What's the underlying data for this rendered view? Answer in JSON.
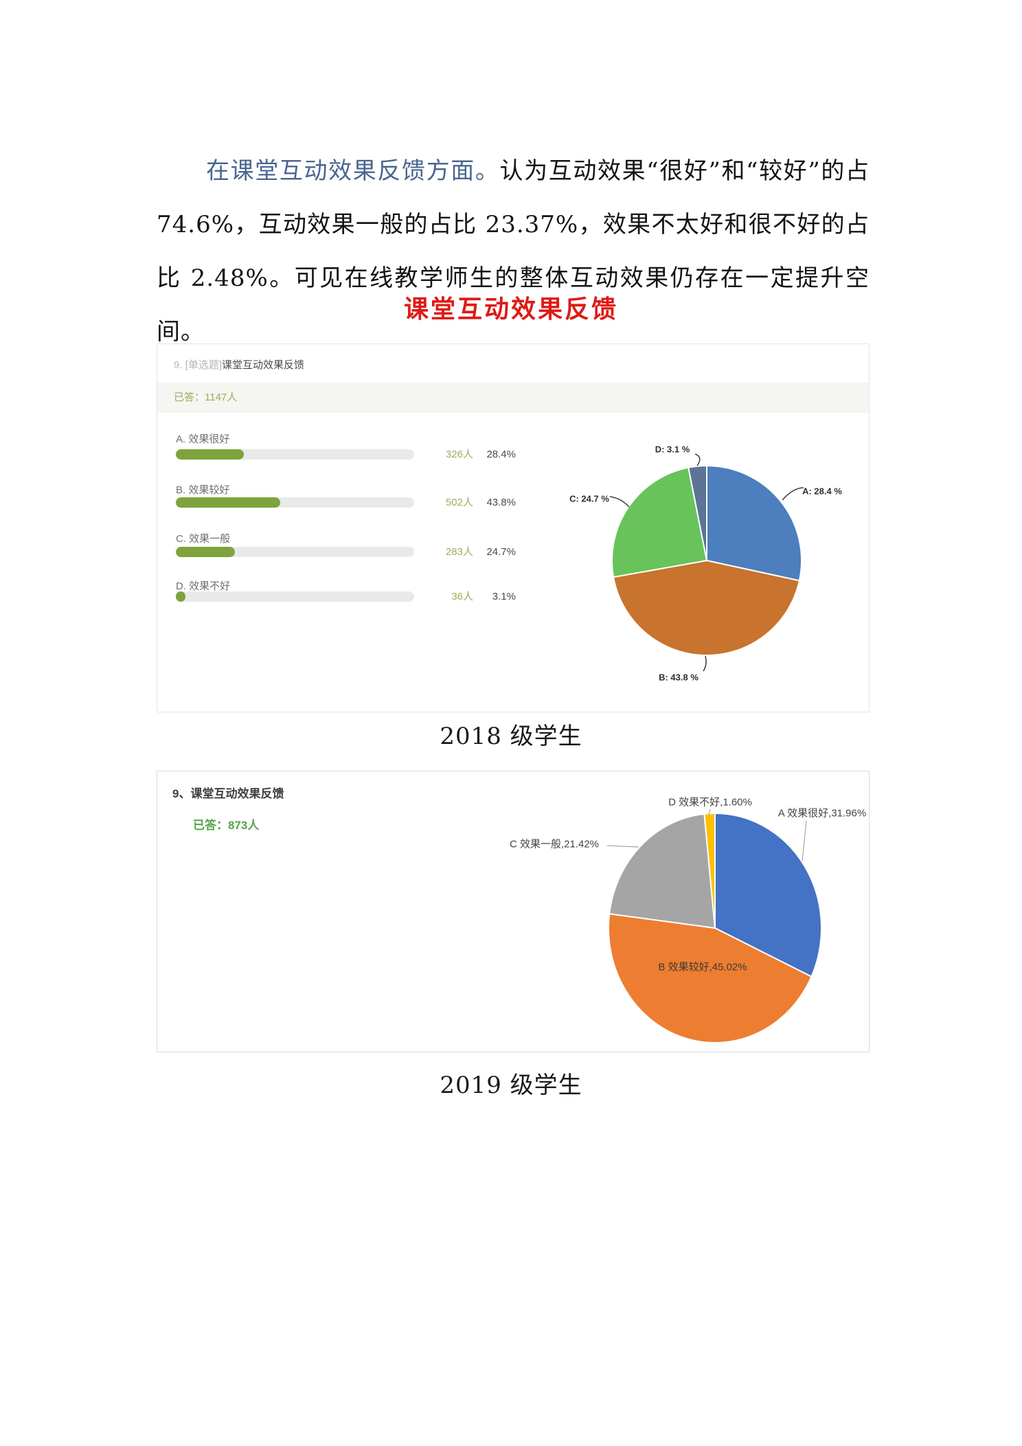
{
  "page": {
    "paragraph": {
      "lead": "在课堂互动效果反馈方面。",
      "body": "认为互动效果“很好”和“较好”的占 74.6%，互动效果一般的占比 23.37%，效果不太好和很不好的占比 2.48%。可见在线教学师生的整体互动效果仍存在一定提升空间。"
    },
    "section_heading": "课堂互动效果反馈",
    "caption_2018": "2018 级学生",
    "caption_2019": "2019 级学生"
  },
  "widget2018": {
    "question_no_tag": "9. [单选题]",
    "question_title": "课堂互动效果反馈",
    "answered": "已答：1147人",
    "options": [
      {
        "label": "A. 效果很好",
        "count": "326人",
        "percent": "28.4%",
        "value": 28.4
      },
      {
        "label": "B. 效果较好",
        "count": "502人",
        "percent": "43.8%",
        "value": 43.8
      },
      {
        "label": "C. 效果一般",
        "count": "283人",
        "percent": "24.7%",
        "value": 24.7
      },
      {
        "label": "D. 效果不好",
        "count": "36人",
        "percent": "3.1%",
        "value": 3.1
      }
    ],
    "pie": {
      "slices": [
        {
          "key": "A",
          "label": "A: 28.4 %",
          "value": 28.4,
          "color": "#4d7ebd"
        },
        {
          "key": "B",
          "label": "B: 43.8 %",
          "value": 43.8,
          "color": "#c8732e"
        },
        {
          "key": "C",
          "label": "C: 24.7 %",
          "value": 24.7,
          "color": "#68c35a"
        },
        {
          "key": "D",
          "label": "D: 3.1 %",
          "value": 3.1,
          "color": "#5c7495"
        }
      ]
    }
  },
  "widget2019": {
    "question_title": "9、课堂互动效果反馈",
    "answered": "已答：873人",
    "pie": {
      "slices": [
        {
          "key": "A",
          "label": "A 效果很好,31.96%",
          "value": 31.96,
          "color": "#4472c4"
        },
        {
          "key": "B",
          "label": "B 效果较好,45.02%",
          "value": 45.02,
          "color": "#ed7d31"
        },
        {
          "key": "C",
          "label": "C 效果一般,21.42%",
          "value": 21.42,
          "color": "#a5a5a5"
        },
        {
          "key": "D",
          "label": "D 效果不好,1.60%",
          "value": 1.6,
          "color": "#ffc000"
        }
      ]
    }
  },
  "chart_data": [
    {
      "type": "bar",
      "title": "9. [单选题]课堂互动效果反馈",
      "total_answered": 1147,
      "categories": [
        "A. 效果很好",
        "B. 效果较好",
        "C. 效果一般",
        "D. 效果不好"
      ],
      "values": [
        28.4,
        43.8,
        24.7,
        3.1
      ],
      "counts": [
        326,
        502,
        283,
        36
      ],
      "unit": "%",
      "bar_color": "#7ea33c",
      "orientation": "horizontal"
    },
    {
      "type": "pie",
      "title": "课堂互动效果反馈（2018 级学生）",
      "labels": [
        "A: 28.4 %",
        "B: 43.8 %",
        "C: 24.7 %",
        "D: 3.1 %"
      ],
      "values": [
        28.4,
        43.8,
        24.7,
        3.1
      ],
      "colors": [
        "#4d7ebd",
        "#c8732e",
        "#68c35a",
        "#5c7495"
      ],
      "start_angle_deg": 0,
      "direction": "clockwise"
    },
    {
      "type": "pie",
      "title": "课堂互动效果反馈（2019 级学生，已答 873 人）",
      "labels": [
        "A 效果很好,31.96%",
        "B 效果较好,45.02%",
        "C 效果一般,21.42%",
        "D 效果不好,1.60%"
      ],
      "values": [
        31.96,
        45.02,
        21.42,
        1.6
      ],
      "colors": [
        "#4472c4",
        "#ed7d31",
        "#a5a5a5",
        "#ffc000"
      ],
      "start_angle_deg": 0,
      "direction": "clockwise"
    }
  ]
}
